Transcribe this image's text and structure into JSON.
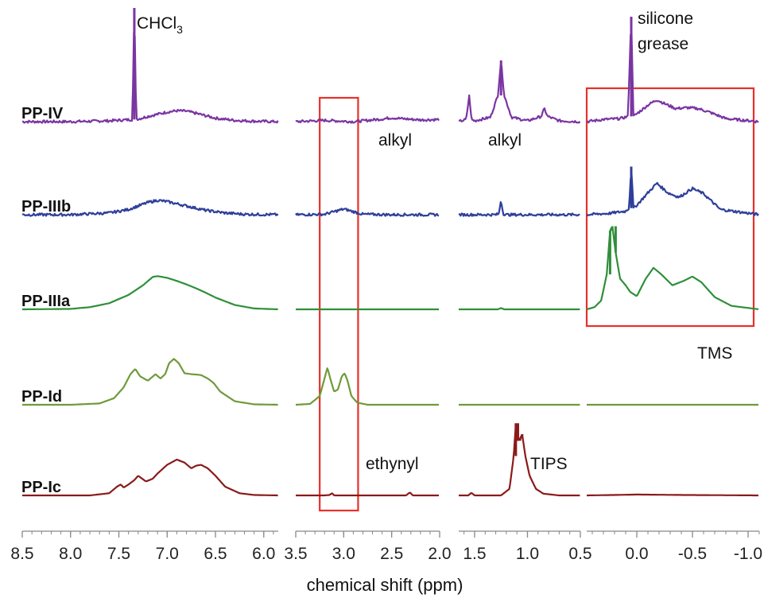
{
  "chart_data": {
    "type": "line",
    "title": "",
    "xlabel": "chemical shift (ppm)",
    "ylabel": "",
    "x_direction": "reversed",
    "grid": false,
    "legend": "none",
    "panels": [
      {
        "xlim": [
          8.5,
          5.85
        ],
        "ticks": [
          "8.5",
          "8.0",
          "7.5",
          "7.0",
          "6.5",
          "6.0"
        ],
        "tick_values": [
          8.5,
          8.0,
          7.5,
          7.0,
          6.5,
          6.0
        ]
      },
      {
        "xlim": [
          3.5,
          2.0
        ],
        "ticks": [
          "3.5",
          "3.0",
          "2.5",
          "2.0"
        ],
        "tick_values": [
          3.5,
          3.0,
          2.5,
          2.0
        ]
      },
      {
        "xlim": [
          1.65,
          0.5
        ],
        "ticks": [
          "1.5",
          "1.0",
          "0.5"
        ],
        "tick_values": [
          1.5,
          1.0,
          0.5
        ]
      },
      {
        "xlim": [
          0.45,
          -1.1
        ],
        "ticks": [
          "0.0",
          "-0.5",
          "-1.0"
        ],
        "tick_values": [
          0.0,
          -0.5,
          -1.0
        ]
      }
    ],
    "series": [
      {
        "name": "PP-IV",
        "color": "#7a35a2",
        "noise": 0.03,
        "segments": [
          {
            "panel": 0,
            "x": [
              8.5,
              8.0,
              7.6,
              7.36,
              7.34,
              7.32,
              7.3,
              7.2,
              7.1,
              7.0,
              6.9,
              6.8,
              6.7,
              6.5,
              6.3,
              6.1,
              5.85
            ],
            "y": [
              0.0,
              0.0,
              0.02,
              0.05,
              2.6,
              0.07,
              0.06,
              0.12,
              0.17,
              0.22,
              0.25,
              0.24,
              0.19,
              0.08,
              0.03,
              0.01,
              0.0
            ]
          },
          {
            "panel": 1,
            "x": [
              3.5,
              3.2,
              2.9,
              2.6,
              2.5,
              2.4,
              2.2,
              2.0
            ],
            "y": [
              0.0,
              0.03,
              0.0,
              0.06,
              0.09,
              0.07,
              0.04,
              0.05
            ]
          },
          {
            "panel": 2,
            "x": [
              1.65,
              1.58,
              1.55,
              1.53,
              1.5,
              1.35,
              1.28,
              1.25,
              1.22,
              1.15,
              1.0,
              0.87,
              0.84,
              0.81,
              0.7,
              0.5
            ],
            "y": [
              0.0,
              0.05,
              0.6,
              0.05,
              0.02,
              0.1,
              0.6,
              1.4,
              0.6,
              0.1,
              0.02,
              0.12,
              0.3,
              0.12,
              0.02,
              0.0
            ]
          },
          {
            "panel": 3,
            "x": [
              0.45,
              0.3,
              0.15,
              0.08,
              0.05,
              0.03,
              0.0,
              -0.1,
              -0.18,
              -0.26,
              -0.35,
              -0.45,
              -0.55,
              -0.65,
              -0.8,
              -1.1
            ],
            "y": [
              0.0,
              0.05,
              0.07,
              0.12,
              2.4,
              0.12,
              0.18,
              0.38,
              0.5,
              0.4,
              0.3,
              0.32,
              0.3,
              0.22,
              0.07,
              0.0
            ]
          }
        ]
      },
      {
        "name": "PP-IIIb",
        "color": "#2e3f9a",
        "noise": 0.03,
        "segments": [
          {
            "panel": 0,
            "x": [
              8.5,
              8.0,
              7.6,
              7.4,
              7.2,
              7.1,
              7.0,
              6.9,
              6.8,
              6.6,
              6.4,
              6.2,
              5.85
            ],
            "y": [
              0.0,
              0.0,
              0.04,
              0.12,
              0.28,
              0.33,
              0.3,
              0.25,
              0.2,
              0.1,
              0.04,
              0.01,
              0.0
            ]
          },
          {
            "panel": 1,
            "x": [
              3.5,
              3.2,
              3.1,
              3.0,
              2.9,
              2.8,
              2.5,
              2.0
            ],
            "y": [
              0.0,
              0.01,
              0.07,
              0.13,
              0.07,
              0.01,
              0.0,
              0.0
            ]
          },
          {
            "panel": 2,
            "x": [
              1.65,
              1.3,
              1.27,
              1.25,
              1.23,
              1.2,
              0.5
            ],
            "y": [
              0.0,
              0.0,
              0.02,
              0.35,
              0.02,
              0.0,
              0.0
            ]
          },
          {
            "panel": 3,
            "x": [
              0.45,
              0.25,
              0.1,
              0.07,
              0.05,
              0.03,
              0.0,
              -0.1,
              -0.18,
              -0.28,
              -0.38,
              -0.5,
              -0.6,
              -0.75,
              -1.1
            ],
            "y": [
              0.0,
              0.03,
              0.08,
              0.15,
              1.1,
              0.15,
              0.22,
              0.5,
              0.72,
              0.5,
              0.4,
              0.6,
              0.48,
              0.12,
              0.0
            ]
          }
        ]
      },
      {
        "name": "PP-IIIa",
        "color": "#2f8f3a",
        "noise": 0.0,
        "segments": [
          {
            "panel": 0,
            "x": [
              8.5,
              8.0,
              7.8,
              7.6,
              7.4,
              7.25,
              7.15,
              7.1,
              7.0,
              6.9,
              6.8,
              6.7,
              6.6,
              6.5,
              6.3,
              6.1,
              5.85
            ],
            "y": [
              0.0,
              0.01,
              0.05,
              0.14,
              0.33,
              0.55,
              0.74,
              0.76,
              0.72,
              0.65,
              0.57,
              0.48,
              0.38,
              0.27,
              0.1,
              0.02,
              0.0
            ]
          },
          {
            "panel": 1,
            "x": [
              3.5,
              2.0
            ],
            "y": [
              0.0,
              0.0
            ]
          },
          {
            "panel": 2,
            "x": [
              1.65,
              1.28,
              1.25,
              1.22,
              0.5
            ],
            "y": [
              0.0,
              0.0,
              0.03,
              0.0,
              0.0
            ]
          },
          {
            "panel": 3,
            "x": [
              0.45,
              0.38,
              0.32,
              0.27,
              0.24,
              0.22,
              0.19,
              0.15,
              0.1,
              0.06,
              0.03,
              0.0,
              -0.08,
              -0.15,
              -0.22,
              -0.32,
              -0.42,
              -0.5,
              -0.58,
              -0.7,
              -0.85,
              -1.1
            ],
            "y": [
              0.0,
              0.05,
              0.2,
              0.8,
              1.8,
              1.9,
              1.3,
              0.7,
              0.55,
              0.4,
              0.35,
              0.3,
              0.7,
              0.95,
              0.8,
              0.55,
              0.65,
              0.75,
              0.62,
              0.28,
              0.08,
              0.0
            ]
          }
        ]
      },
      {
        "name": "PP-Id",
        "color": "#6f9a3a",
        "noise": 0.0,
        "segments": [
          {
            "panel": 0,
            "x": [
              8.5,
              8.0,
              7.7,
              7.55,
              7.45,
              7.38,
              7.33,
              7.28,
              7.2,
              7.12,
              7.07,
              7.02,
              6.98,
              6.93,
              6.88,
              6.82,
              6.75,
              6.65,
              6.58,
              6.52,
              6.45,
              6.3,
              6.1,
              5.85
            ],
            "y": [
              0.0,
              0.0,
              0.03,
              0.15,
              0.4,
              0.7,
              0.82,
              0.65,
              0.55,
              0.7,
              0.6,
              0.7,
              0.95,
              1.05,
              0.95,
              0.72,
              0.7,
              0.68,
              0.6,
              0.5,
              0.3,
              0.08,
              0.01,
              0.0
            ]
          },
          {
            "panel": 1,
            "x": [
              3.5,
              3.35,
              3.25,
              3.2,
              3.17,
              3.14,
              3.1,
              3.06,
              3.02,
              2.99,
              2.96,
              2.92,
              2.86,
              2.75,
              2.0
            ],
            "y": [
              0.0,
              0.02,
              0.2,
              0.6,
              0.85,
              0.6,
              0.3,
              0.35,
              0.65,
              0.72,
              0.55,
              0.2,
              0.05,
              0.0,
              0.0
            ]
          },
          {
            "panel": 2,
            "x": [
              1.65,
              0.5
            ],
            "y": [
              0.0,
              0.0
            ]
          },
          {
            "panel": 3,
            "x": [
              0.45,
              -1.1
            ],
            "y": [
              0.0,
              0.0
            ]
          }
        ]
      },
      {
        "name": "PP-Ic",
        "color": "#8b1a1a",
        "noise": 0.0,
        "segments": [
          {
            "panel": 0,
            "x": [
              8.5,
              7.8,
              7.6,
              7.52,
              7.48,
              7.45,
              7.4,
              7.34,
              7.3,
              7.27,
              7.22,
              7.15,
              7.1,
              7.0,
              6.9,
              6.82,
              6.75,
              6.7,
              6.65,
              6.58,
              6.5,
              6.4,
              6.25,
              6.1,
              5.85
            ],
            "y": [
              0.0,
              0.0,
              0.05,
              0.2,
              0.25,
              0.18,
              0.25,
              0.35,
              0.45,
              0.4,
              0.32,
              0.38,
              0.5,
              0.7,
              0.82,
              0.75,
              0.62,
              0.68,
              0.7,
              0.62,
              0.45,
              0.2,
              0.05,
              0.01,
              0.0
            ]
          },
          {
            "panel": 1,
            "x": [
              3.5,
              3.2,
              3.15,
              3.12,
              3.1,
              2.35,
              2.31,
              2.28,
              2.0
            ],
            "y": [
              0.0,
              0.0,
              0.01,
              0.05,
              0.0,
              0.0,
              0.07,
              0.0,
              0.0
            ]
          },
          {
            "panel": 2,
            "x": [
              1.65,
              1.56,
              1.53,
              1.5,
              1.25,
              1.17,
              1.13,
              1.11,
              1.09,
              1.07,
              1.05,
              1.02,
              0.98,
              0.92,
              0.85,
              0.7,
              0.5
            ],
            "y": [
              0.0,
              0.0,
              0.06,
              0.0,
              0.0,
              0.15,
              0.9,
              1.65,
              1.25,
              1.3,
              1.4,
              0.9,
              0.45,
              0.15,
              0.04,
              0.0,
              0.0
            ]
          },
          {
            "panel": 3,
            "x": [
              0.45,
              0.2,
              0.0,
              -0.4,
              -1.1
            ],
            "y": [
              0.0,
              0.01,
              0.02,
              0.01,
              0.0
            ]
          }
        ]
      }
    ],
    "highlights": [
      {
        "panel": 1,
        "x": [
          3.25,
          2.85
        ]
      },
      {
        "panel": 3,
        "x": [
          0.45,
          -1.05
        ]
      }
    ],
    "annotations": [
      {
        "main": "CHCl",
        "sub": "3"
      },
      {
        "main": "silicone"
      },
      {
        "main": "grease"
      },
      {
        "main": "alkyl"
      },
      {
        "main": "alkyl"
      },
      {
        "main": "TMS"
      },
      {
        "main": "ethynyl"
      },
      {
        "main": "TIPS"
      }
    ],
    "highlight_color": "#e8302a",
    "axis_color": "#888888"
  }
}
